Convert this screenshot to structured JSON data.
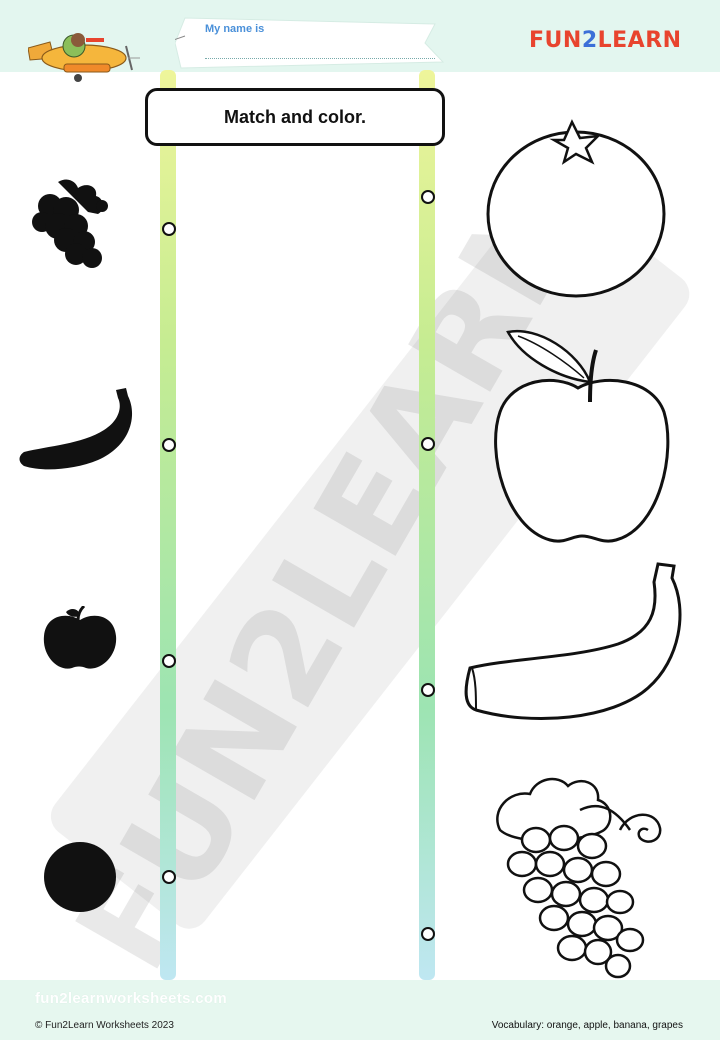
{
  "header": {
    "name_label": "My name is",
    "logo": {
      "fun": "FUN",
      "two": "2",
      "learn": "LEARN"
    }
  },
  "title": "Match and color.",
  "left_column": [
    {
      "name": "grapes-silhouette"
    },
    {
      "name": "banana-silhouette"
    },
    {
      "name": "apple-silhouette"
    },
    {
      "name": "orange-silhouette"
    }
  ],
  "right_column": [
    {
      "name": "orange-outline"
    },
    {
      "name": "apple-outline"
    },
    {
      "name": "banana-outline"
    },
    {
      "name": "grapes-outline"
    }
  ],
  "watermark_text": "FUN2LEARN",
  "footer": {
    "site": "fun2learnworksheets.com",
    "copyright": "© Fun2Learn Worksheets 2023",
    "vocabulary": "Vocabulary: orange, apple, banana, grapes"
  },
  "colors": {
    "band": "#e3f6ef",
    "logo_red": "#e8442e",
    "logo_blue": "#3b6fd8",
    "name_label": "#4a90d9"
  }
}
